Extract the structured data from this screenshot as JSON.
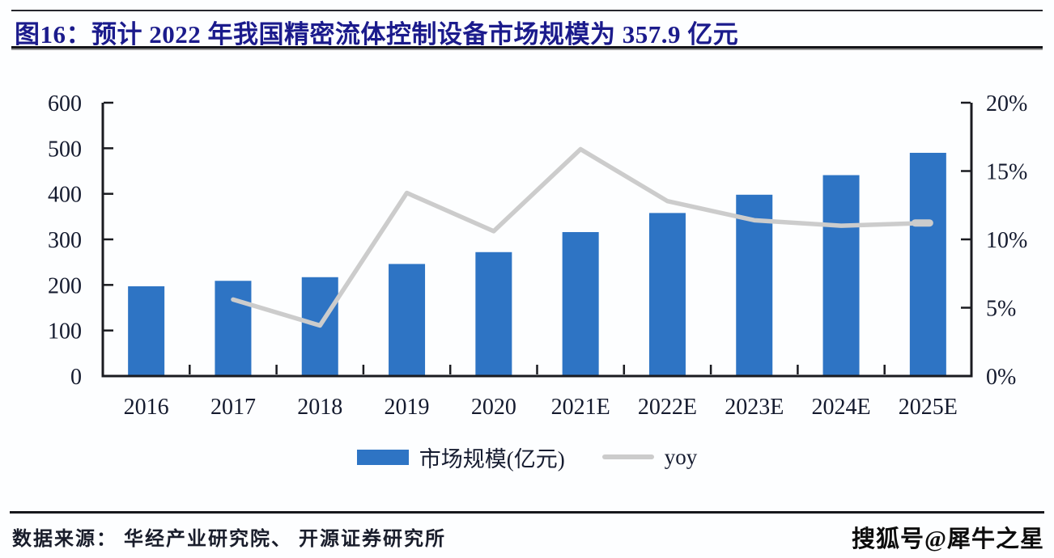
{
  "header": {
    "figure_title": "图16：预计 2022 年我国精密流体控制设备市场规模为 357.9 亿元"
  },
  "legend": {
    "items": [
      {
        "label": "市场规模(亿元)",
        "type": "bar",
        "color": "#2E74C4"
      },
      {
        "label": "yoy",
        "type": "line",
        "color": "#CCCCCC"
      }
    ]
  },
  "footer": {
    "source": "数据来源： 华经产业研究院、 开源证券研究所"
  },
  "watermark": "搜狐号@犀牛之星",
  "chart_data": {
    "type": "bar",
    "subtype": "bar+line combo, dual axis",
    "title": "预计 2022 年我国精密流体控制设备市场规模为 357.9 亿元",
    "categories": [
      "2016",
      "2017",
      "2018",
      "2019",
      "2020",
      "2021E",
      "2022E",
      "2023E",
      "2024E",
      "2025E"
    ],
    "series": [
      {
        "name": "市场规模(亿元)",
        "chart": "bar",
        "axis": "left",
        "color": "#2E74C4",
        "values": [
          197,
          209,
          217,
          246,
          272,
          316,
          357.9,
          398,
          441,
          490
        ]
      },
      {
        "name": "yoy",
        "chart": "line",
        "axis": "right",
        "unit": "%",
        "color": "#CCCCCC",
        "values": [
          null,
          5.6,
          3.7,
          13.4,
          10.6,
          16.6,
          12.8,
          11.4,
          11.0,
          11.2
        ]
      }
    ],
    "left_axis": {
      "min": 0,
      "max": 600,
      "tick_step": 100,
      "tick_labels": [
        "0",
        "100",
        "200",
        "300",
        "400",
        "500",
        "600"
      ]
    },
    "right_axis": {
      "min": 0,
      "max": 20,
      "tick_step": 5,
      "tick_labels": [
        "0%",
        "5%",
        "10%",
        "15%",
        "20%"
      ]
    },
    "grid": false,
    "legend_position": "bottom",
    "axis_color": "#1A1B20"
  }
}
